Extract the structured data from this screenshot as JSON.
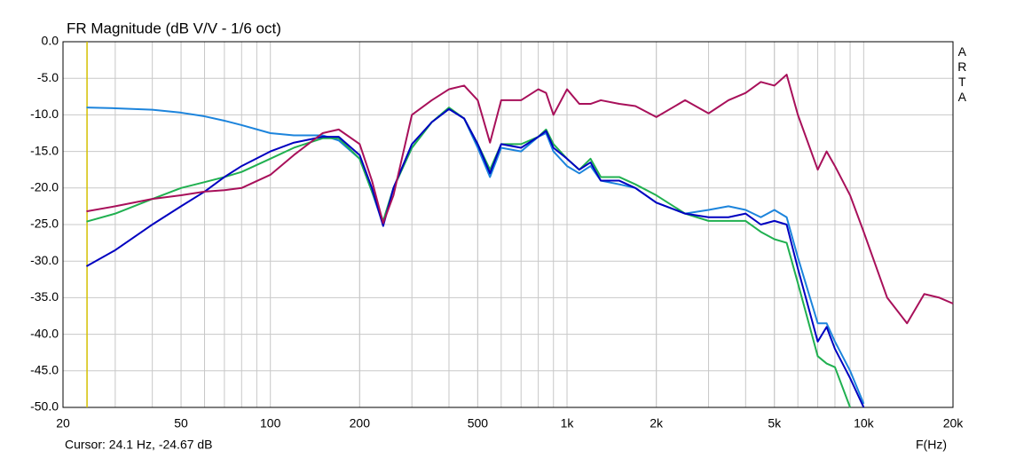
{
  "chart_data": {
    "type": "line",
    "title": "FR Magnitude (dB V/V - 1/6 oct)",
    "x_label": "F(Hz)",
    "brand": "ARTA",
    "cursor": {
      "x": 24.1,
      "label": "Cursor: 24.1 Hz, -24.67 dB",
      "color": "#d4c000"
    },
    "log_x": true,
    "grid": true,
    "xlim": [
      20,
      20000
    ],
    "ylim": [
      -50,
      0
    ],
    "xticks": [
      20,
      50,
      100,
      200,
      500,
      {
        "value": 1000,
        "label": "1k"
      },
      {
        "value": 2000,
        "label": "2k"
      },
      {
        "value": 5000,
        "label": "5k"
      },
      {
        "value": 10000,
        "label": "10k"
      },
      {
        "value": 20000,
        "label": "20k"
      }
    ],
    "yticks": [
      {
        "value": 0,
        "label": "0.0"
      },
      {
        "value": -5,
        "label": "-5.0"
      },
      {
        "value": -10,
        "label": "-10.0"
      },
      {
        "value": -15,
        "label": "-15.0"
      },
      {
        "value": -20,
        "label": "-20.0"
      },
      {
        "value": -25,
        "label": "-25.0"
      },
      {
        "value": -30,
        "label": "-30.0"
      },
      {
        "value": -35,
        "label": "-35.0"
      },
      {
        "value": -40,
        "label": "-40.0"
      },
      {
        "value": -45,
        "label": "-45.0"
      },
      {
        "value": -50,
        "label": "-50.0"
      }
    ],
    "x": [
      24,
      30,
      40,
      50,
      60,
      70,
      80,
      100,
      120,
      150,
      170,
      200,
      220,
      240,
      260,
      300,
      350,
      400,
      450,
      500,
      550,
      600,
      700,
      800,
      850,
      900,
      1000,
      1100,
      1200,
      1300,
      1500,
      1700,
      2000,
      2500,
      3000,
      3500,
      4000,
      4500,
      5000,
      5500,
      6000,
      7000,
      7500,
      8000,
      9000,
      10000,
      12000,
      14000,
      16000,
      18000,
      20000
    ],
    "series": [
      {
        "color": "#1c84dc",
        "values": [
          -9,
          -9.1,
          -9.3,
          -9.7,
          -10.2,
          -10.8,
          -11.4,
          -12.5,
          -12.8,
          -12.8,
          -13.5,
          -16,
          -20.5,
          -25,
          -20,
          -14.5,
          -11,
          -9.2,
          -10.5,
          -14.5,
          -18.5,
          -14.5,
          -15,
          -13,
          -12.5,
          -15,
          -17,
          -18,
          -17,
          -19,
          -19.5,
          -20,
          -22,
          -23.5,
          -23,
          -22.5,
          -23,
          -24,
          -23,
          -24,
          -29.5,
          -38.5,
          -38.5,
          -41,
          -45,
          -49.5,
          null,
          null,
          null,
          null,
          null
        ]
      },
      {
        "color": "#20b050",
        "values": [
          -24.6,
          -23.5,
          -21.5,
          -20,
          -19.2,
          -18.5,
          -17.8,
          -16,
          -14.5,
          -13.2,
          -13.2,
          -16,
          -20.5,
          -24.5,
          -20,
          -14.5,
          -11,
          -9,
          -10.5,
          -14,
          -17.5,
          -14,
          -14,
          -13,
          -12,
          -14,
          -16,
          -17.5,
          -16,
          -18.5,
          -18.5,
          -19.5,
          -21,
          -23.5,
          -24.5,
          -24.5,
          -24.5,
          -26,
          -27,
          -27.5,
          -33,
          -43,
          -44,
          -44.5,
          -50,
          null,
          null,
          null,
          null,
          null,
          null
        ]
      },
      {
        "color": "#0000c0",
        "values": [
          -30.7,
          -28.5,
          -25,
          -22.5,
          -20.5,
          -18.5,
          -17,
          -15,
          -13.8,
          -13,
          -13,
          -15.5,
          -20,
          -25.2,
          -20,
          -14,
          -11,
          -9.2,
          -10.5,
          -14,
          -18,
          -14,
          -14.5,
          -13,
          -12.2,
          -14.5,
          -16,
          -17.5,
          -16.5,
          -19,
          -19,
          -20,
          -22,
          -23.5,
          -24,
          -24,
          -23.5,
          -25,
          -24.5,
          -25,
          -31,
          -41,
          -39,
          -42,
          -46,
          -50,
          null,
          null,
          null,
          null,
          null
        ]
      },
      {
        "color": "#a8105a",
        "values": [
          -23.2,
          -22.5,
          -21.5,
          -21,
          -20.5,
          -20.3,
          -20,
          -18.2,
          -15.5,
          -12.5,
          -12,
          -14,
          -19,
          -24.8,
          -21,
          -10,
          -8,
          -6.5,
          -6,
          -8,
          -13.8,
          -8,
          -8,
          -6.5,
          -7,
          -10,
          -6.5,
          -8.5,
          -8.5,
          -8,
          -8.5,
          -8.8,
          -10.3,
          -8,
          -9.8,
          -8,
          -7,
          -5.5,
          -6,
          -4.5,
          -10,
          -17.5,
          -15,
          -17,
          -21,
          -26,
          -35,
          -38.5,
          -34.5,
          -35,
          -35.8
        ]
      }
    ]
  }
}
